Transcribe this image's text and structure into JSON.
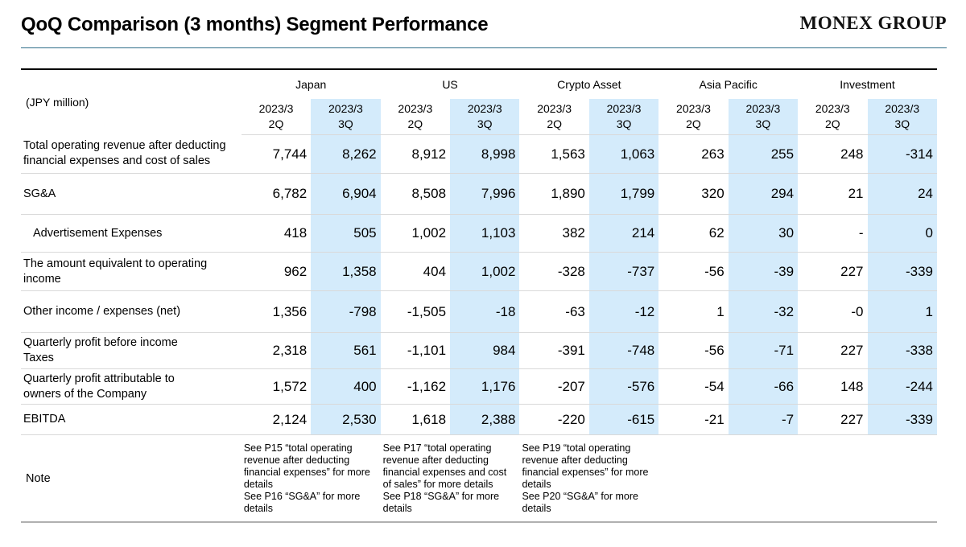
{
  "header": {
    "title": "QoQ Comparison (3 months) Segment Performance",
    "logo_text": "MONEX GROUP"
  },
  "table": {
    "unit_label": "(JPY million)",
    "segments": [
      "Japan",
      "US",
      "Crypto Asset",
      "Asia Pacific",
      "Investment"
    ],
    "periods": [
      {
        "line1": "2023/3",
        "line2": "2Q"
      },
      {
        "line1": "2023/3",
        "line2": "3Q"
      }
    ],
    "rows": [
      {
        "label": "Total operating revenue after deducting\nfinancial expenses and cost of sales",
        "indent": false,
        "values": [
          "7,744",
          "8,262",
          "8,912",
          "8,998",
          "1,563",
          "1,063",
          "263",
          "255",
          "248",
          "-314"
        ]
      },
      {
        "label": "SG&A",
        "indent": false,
        "values": [
          "6,782",
          "6,904",
          "8,508",
          "7,996",
          "1,890",
          "1,799",
          "320",
          "294",
          "21",
          "24"
        ]
      },
      {
        "label": "Advertisement Expenses",
        "indent": true,
        "values": [
          "418",
          "505",
          "1,002",
          "1,103",
          "382",
          "214",
          "62",
          "30",
          "-",
          "0"
        ]
      },
      {
        "label": "The amount equivalent to operating\nincome",
        "indent": false,
        "values": [
          "962",
          "1,358",
          "404",
          "1,002",
          "-328",
          "-737",
          "-56",
          "-39",
          "227",
          "-339"
        ]
      },
      {
        "label": "Other income / expenses (net)",
        "indent": false,
        "values": [
          "1,356",
          "-798",
          "-1,505",
          "-18",
          "-63",
          "-12",
          "1",
          "-32",
          "-0",
          "1"
        ]
      },
      {
        "label": "Quarterly profit before income\nTaxes",
        "indent": false,
        "values": [
          "2,318",
          "561",
          "-1,101",
          "984",
          "-391",
          "-748",
          "-56",
          "-71",
          "227",
          "-338"
        ]
      },
      {
        "label": "Quarterly profit attributable to\nowners of the Company",
        "indent": false,
        "values": [
          "1,572",
          "400",
          "-1,162",
          "1,176",
          "-207",
          "-576",
          "-54",
          "-66",
          "148",
          "-244"
        ]
      },
      {
        "label": "EBITDA",
        "indent": false,
        "values": [
          "2,124",
          "2,530",
          "1,618",
          "2,388",
          "-220",
          "-615",
          "-21",
          "-7",
          "227",
          "-339"
        ]
      }
    ],
    "note": {
      "label": "Note",
      "texts": [
        "See P15 “total operating revenue after deducting financial expenses” for more details\nSee P16 “SG&A” for more details",
        "See P17 “total operating revenue after deducting financial expenses and cost of sales” for more details\nSee P18 “SG&A” for more details",
        "See P19 “total operating revenue after deducting financial expenses” for more details\nSee P20 “SG&A” for more details",
        "",
        ""
      ]
    },
    "colors": {
      "highlight": "#d4ebfb",
      "rule": "#2f6e89"
    }
  }
}
